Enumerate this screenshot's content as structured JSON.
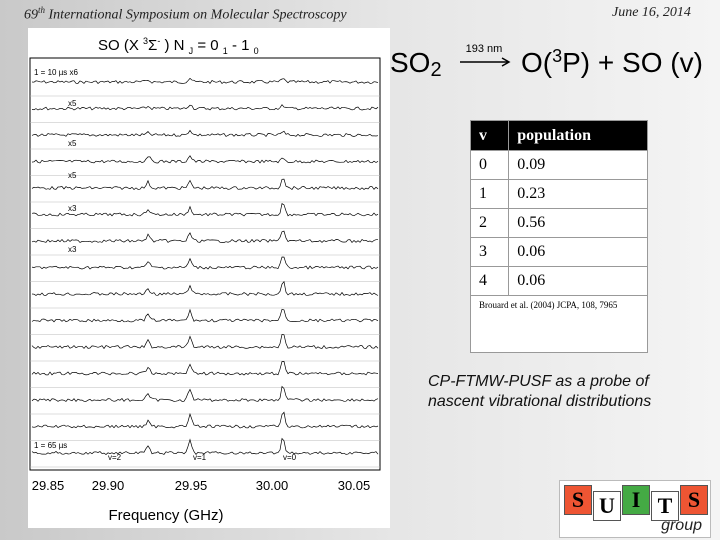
{
  "header": {
    "number": "69",
    "suffix": "th",
    "title": "International Symposium on Molecular Spectroscopy",
    "date": "June 16, 2014"
  },
  "reaction": {
    "reactant": "SO",
    "reactant_sub": "2",
    "arrow_label": "193 nm",
    "product_a": "O(",
    "product_sup": "3",
    "product_b": "P) + SO (v)"
  },
  "figure": {
    "title": [
      "SO (X ",
      "3",
      "Σ",
      "-",
      " ) N ",
      "J",
      " = 0 ",
      "1",
      " - 1 ",
      "0"
    ],
    "panel_labels": [
      "1 = 10 µs  x6",
      "x5",
      "x5",
      "x5",
      "x3",
      "x3",
      "1 = 65 µs"
    ],
    "peak_labels": [
      "v=2",
      "v=1",
      "v=0"
    ],
    "x_tick_labels": [
      "29.85",
      "29.90",
      "29.95",
      "30.00",
      "30.05"
    ],
    "x_label": "Frequency (GHz)"
  },
  "table": {
    "header": [
      "v",
      "population"
    ],
    "rows": [
      [
        "0",
        "0.09"
      ],
      [
        "1",
        "0.23"
      ],
      [
        "2",
        "0.56"
      ],
      [
        "3",
        "0.06"
      ],
      [
        "4",
        "0.06"
      ]
    ],
    "citation": "Brouard et al. (2004) JCPA, 108, 7965"
  },
  "caption": "CP-FTMW-PUSF as a probe of nascent vibrational distributions",
  "logo": {
    "letters": [
      "S",
      "U",
      "I",
      "T",
      "S"
    ],
    "word": "group"
  }
}
